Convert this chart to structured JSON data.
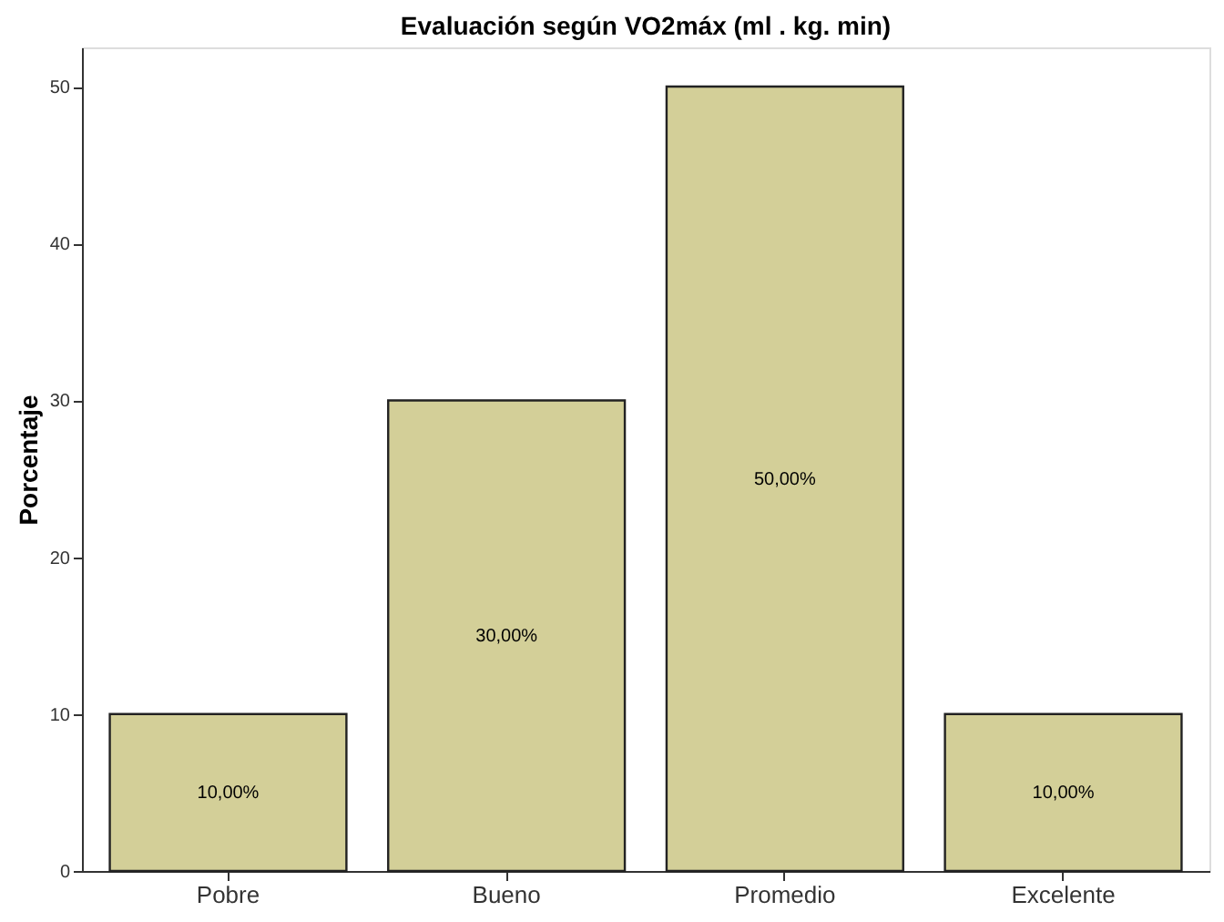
{
  "chart_data": {
    "type": "bar",
    "title": "Evaluación según VO2máx (ml . kg. min)",
    "ylabel": "Porcentaje",
    "categories": [
      "Pobre",
      "Bueno",
      "Promedio",
      "Excelente"
    ],
    "values": [
      10,
      30,
      50,
      10
    ],
    "value_labels": [
      "10,00%",
      "30,00%",
      "50,00%",
      "10,00%"
    ],
    "color": "#d3cf98",
    "ylim": [
      0,
      52.5
    ],
    "yticks": [
      0,
      10,
      20,
      30,
      40,
      50
    ],
    "grid": false
  }
}
